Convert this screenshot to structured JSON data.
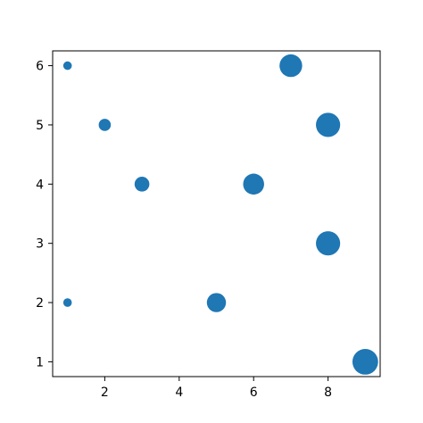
{
  "chart_data": {
    "type": "scatter",
    "title": "",
    "xlabel": "",
    "ylabel": "",
    "xlim": [
      0.6,
      9.4
    ],
    "ylim": [
      0.75,
      6.25
    ],
    "xticks": [
      2,
      4,
      6,
      8
    ],
    "yticks": [
      1,
      2,
      3,
      4,
      5,
      6
    ],
    "grid": false,
    "marker_color": "#1f77b4",
    "size_encoding": "marker area scales with the x value",
    "points": [
      {
        "x": 1,
        "y": 6
      },
      {
        "x": 2,
        "y": 5
      },
      {
        "x": 3,
        "y": 4
      },
      {
        "x": 6,
        "y": 4
      },
      {
        "x": 7,
        "y": 6
      },
      {
        "x": 8,
        "y": 5
      },
      {
        "x": 8,
        "y": 3
      },
      {
        "x": 1,
        "y": 2
      },
      {
        "x": 5,
        "y": 2
      },
      {
        "x": 9,
        "y": 1
      }
    ]
  }
}
